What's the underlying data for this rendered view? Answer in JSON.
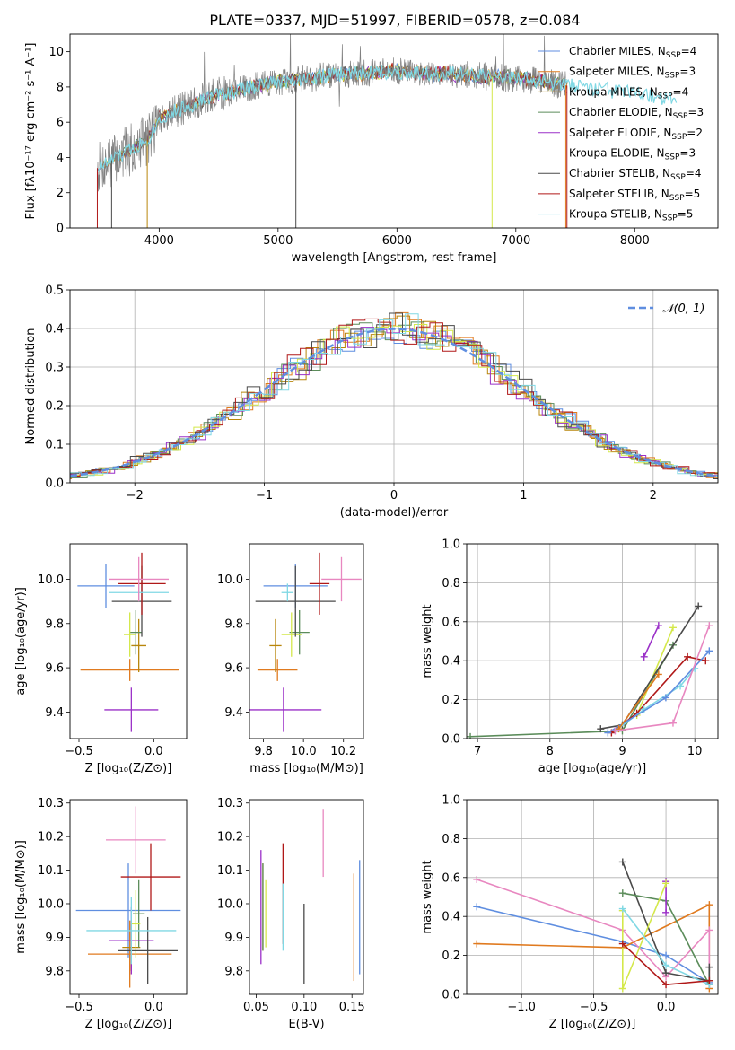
{
  "figure_title": "PLATE=0337, MJD=51997, FIBERID=0578, z=0.084",
  "colors": {
    "Chabrier MILES": "#5f8ee0",
    "Salpeter MILES": "#e07a1f",
    "Kroupa MILES": "#b8860b",
    "Chabrier ELODIE": "#5b8c5a",
    "Salpeter ELODIE": "#9b30c8",
    "Kroupa ELODIE": "#d4e84a",
    "Chabrier STELIB": "#4a4a4a",
    "Salpeter STELIB": "#b01818",
    "Kroupa STELIB": "#80d8e4",
    "pink": "#e887c0",
    "normal": "#5f8ee0",
    "data": "#808080"
  },
  "chart_data": [
    {
      "id": "spectrum",
      "type": "line",
      "xlabel": "wavelength [Angstrom, rest frame]",
      "ylabel": "Flux [fλ10⁻¹⁷ erg cm⁻² s⁻¹ A⁻¹]",
      "xlim": [
        3250,
        8700
      ],
      "ylim": [
        0,
        11
      ],
      "xticks": [
        4000,
        5000,
        6000,
        7000,
        8000
      ],
      "yticks": [
        0,
        2,
        4,
        6,
        8,
        10
      ],
      "legend_position": "upper-right",
      "legend": [
        {
          "name": "Chabrier MILES",
          "nssp": "4"
        },
        {
          "name": "Salpeter MILES",
          "nssp": "3"
        },
        {
          "name": "Kroupa MILES",
          "nssp": "4"
        },
        {
          "name": "Chabrier ELODIE",
          "nssp": "3"
        },
        {
          "name": "Salpeter ELODIE",
          "nssp": "2"
        },
        {
          "name": "Kroupa ELODIE",
          "nssp": "3"
        },
        {
          "name": "Chabrier STELIB",
          "nssp": "4"
        },
        {
          "name": "Salpeter STELIB",
          "nssp": "5"
        },
        {
          "name": "Kroupa STELIB",
          "nssp": "5"
        }
      ],
      "continuum": [
        [
          3480,
          3.4
        ],
        [
          3700,
          4.2
        ],
        [
          3900,
          5.0
        ],
        [
          4000,
          6.2
        ],
        [
          4200,
          6.8
        ],
        [
          4500,
          7.6
        ],
        [
          5000,
          8.3
        ],
        [
          5500,
          8.7
        ],
        [
          6000,
          8.9
        ],
        [
          6500,
          8.7
        ],
        [
          7000,
          8.5
        ],
        [
          7400,
          8.1
        ],
        [
          7800,
          7.8
        ],
        [
          8300,
          7.3
        ]
      ]
    },
    {
      "id": "residuals",
      "type": "histogram",
      "xlabel": "(data-model)/error",
      "ylabel": "Normed distribution",
      "xlim": [
        -2.5,
        2.5
      ],
      "ylim": [
        0,
        0.5
      ],
      "xticks": [
        -2,
        -1,
        0,
        1,
        2
      ],
      "yticks": [
        0.0,
        0.1,
        0.2,
        0.3,
        0.4,
        0.5
      ],
      "grid": true,
      "legend_position": "upper-right",
      "legend_label": "𝒩(0, 1)"
    },
    {
      "id": "age-vs-Z",
      "type": "errorbar",
      "xlabel": "Z [log₁₀(Z/Z⊙)]",
      "ylabel": "age  [log₁₀(age/yr)]",
      "xlim": [
        -0.56,
        0.22
      ],
      "ylim": [
        9.28,
        10.16
      ],
      "xticks": [
        -0.5,
        0.0
      ],
      "yticks": [
        9.4,
        9.6,
        9.8,
        10.0
      ],
      "points": [
        {
          "s": "Chabrier MILES",
          "x": -0.32,
          "xe": 0.19,
          "y": 9.97,
          "ye": 0.1
        },
        {
          "s": "Salpeter MILES",
          "x": -0.16,
          "xe": 0.33,
          "y": 9.59,
          "ye": 0.05
        },
        {
          "s": "Kroupa MILES",
          "x": -0.1,
          "xe": 0.05,
          "y": 9.7,
          "ye": 0.12
        },
        {
          "s": "Chabrier ELODIE",
          "x": -0.12,
          "xe": 0.04,
          "y": 9.76,
          "ye": 0.1
        },
        {
          "s": "Salpeter ELODIE",
          "x": -0.15,
          "xe": 0.18,
          "y": 9.41,
          "ye": 0.1
        },
        {
          "s": "Kroupa ELODIE",
          "x": -0.16,
          "xe": 0.04,
          "y": 9.75,
          "ye": 0.1
        },
        {
          "s": "Chabrier STELIB",
          "x": -0.08,
          "xe": 0.2,
          "y": 9.9,
          "ye": 0.16
        },
        {
          "s": "Salpeter STELIB",
          "x": -0.08,
          "xe": 0.16,
          "y": 9.98,
          "ye": 0.14
        },
        {
          "s": "Kroupa STELIB",
          "x": -0.1,
          "xe": 0.2,
          "y": 9.94,
          "ye": 0.04
        },
        {
          "s": "pink",
          "x": -0.1,
          "xe": 0.2,
          "y": 10.0,
          "ye": 0.1
        }
      ]
    },
    {
      "id": "age-vs-mass",
      "type": "errorbar",
      "xlabel": "mass [log₁₀(M/M⊙)]",
      "ylabel": "",
      "xlim": [
        9.73,
        10.3
      ],
      "ylim": [
        9.28,
        10.16
      ],
      "xticks": [
        9.8,
        10.0,
        10.2
      ],
      "yticks": [
        9.4,
        9.6,
        9.8,
        10.0
      ],
      "points": [
        {
          "s": "Chabrier MILES",
          "x": 9.96,
          "xe": 0.16,
          "y": 9.97,
          "ye": 0.1
        },
        {
          "s": "Salpeter MILES",
          "x": 9.87,
          "xe": 0.1,
          "y": 9.59,
          "ye": 0.05
        },
        {
          "s": "Kroupa MILES",
          "x": 9.86,
          "xe": 0.03,
          "y": 9.7,
          "ye": 0.12
        },
        {
          "s": "Chabrier ELODIE",
          "x": 9.98,
          "xe": 0.05,
          "y": 9.76,
          "ye": 0.1
        },
        {
          "s": "Salpeter ELODIE",
          "x": 9.9,
          "xe": 0.19,
          "y": 9.41,
          "ye": 0.1
        },
        {
          "s": "Kroupa ELODIE",
          "x": 9.94,
          "xe": 0.05,
          "y": 9.75,
          "ye": 0.1
        },
        {
          "s": "Chabrier STELIB",
          "x": 9.96,
          "xe": 0.2,
          "y": 9.9,
          "ye": 0.16
        },
        {
          "s": "Salpeter STELIB",
          "x": 10.08,
          "xe": 0.05,
          "y": 9.98,
          "ye": 0.14
        },
        {
          "s": "Kroupa STELIB",
          "x": 9.92,
          "xe": 0.03,
          "y": 9.94,
          "ye": 0.04
        },
        {
          "s": "pink",
          "x": 10.19,
          "xe": 0.1,
          "y": 10.0,
          "ye": 0.1
        }
      ]
    },
    {
      "id": "mass-weight-vs-age",
      "type": "line",
      "xlabel": "age  [log₁₀(age/yr)]",
      "ylabel": "mass weight",
      "xlim": [
        6.85,
        10.32
      ],
      "ylim": [
        0,
        1.0
      ],
      "xticks": [
        7,
        8,
        9,
        10
      ],
      "yticks": [
        0.0,
        0.2,
        0.4,
        0.6,
        0.8,
        1.0
      ],
      "grid": true,
      "series": [
        {
          "s": "Chabrier ELODIE",
          "x": [
            6.9,
            9.0,
            9.7
          ],
          "y": [
            0.01,
            0.04,
            0.48
          ]
        },
        {
          "s": "Salpeter ELODIE",
          "x": [
            9.3,
            9.5
          ],
          "y": [
            0.42,
            0.58
          ]
        },
        {
          "s": "Kroupa ELODIE",
          "x": [
            9.2,
            9.7
          ],
          "y": [
            0.12,
            0.57
          ]
        },
        {
          "s": "Chabrier STELIB",
          "x": [
            8.7,
            9.0,
            10.05
          ],
          "y": [
            0.05,
            0.07,
            0.68
          ]
        },
        {
          "s": "Salpeter STELIB",
          "x": [
            8.85,
            9.2,
            9.9,
            10.15
          ],
          "y": [
            0.03,
            0.13,
            0.42,
            0.4
          ]
        },
        {
          "s": "Kroupa STELIB",
          "x": [
            8.9,
            9.3,
            9.8,
            10.0
          ],
          "y": [
            0.04,
            0.15,
            0.27,
            0.36
          ]
        },
        {
          "s": "Chabrier MILES",
          "x": [
            8.8,
            9.6,
            10.2
          ],
          "y": [
            0.03,
            0.21,
            0.45
          ]
        },
        {
          "s": "Salpeter MILES",
          "x": [
            8.95,
            9.5
          ],
          "y": [
            0.05,
            0.33
          ]
        },
        {
          "s": "pink",
          "x": [
            8.9,
            9.7,
            10.2
          ],
          "y": [
            0.04,
            0.08,
            0.58
          ]
        }
      ]
    },
    {
      "id": "mass-vs-Z",
      "type": "errorbar",
      "xlabel": "Z [log₁₀(Z/Z⊙)]",
      "ylabel": "mass [log₁₀(M/M⊙)]",
      "xlim": [
        -0.56,
        0.22
      ],
      "ylim": [
        9.73,
        10.31
      ],
      "xticks": [
        -0.5,
        0.0
      ],
      "yticks": [
        9.8,
        9.9,
        10.0,
        10.1,
        10.2,
        10.3
      ],
      "points": [
        {
          "s": "Chabrier MILES",
          "x": -0.17,
          "xe": 0.35,
          "y": 9.98,
          "ye": 0.14
        },
        {
          "s": "Salpeter MILES",
          "x": -0.16,
          "xe": 0.28,
          "y": 9.85,
          "ye": 0.1
        },
        {
          "s": "Kroupa MILES",
          "x": -0.15,
          "xe": 0.06,
          "y": 9.87,
          "ye": 0.07
        },
        {
          "s": "Chabrier ELODIE",
          "x": -0.1,
          "xe": 0.04,
          "y": 9.97,
          "ye": 0.1
        },
        {
          "s": "Salpeter ELODIE",
          "x": -0.15,
          "xe": 0.15,
          "y": 9.89,
          "ye": 0.1
        },
        {
          "s": "Kroupa ELODIE",
          "x": -0.12,
          "xe": 0.03,
          "y": 9.94,
          "ye": 0.1
        },
        {
          "s": "Chabrier STELIB",
          "x": -0.04,
          "xe": 0.2,
          "y": 9.86,
          "ye": 0.1
        },
        {
          "s": "Salpeter STELIB",
          "x": -0.02,
          "xe": 0.2,
          "y": 10.08,
          "ye": 0.1
        },
        {
          "s": "Kroupa STELIB",
          "x": -0.15,
          "xe": 0.3,
          "y": 9.92,
          "ye": 0.1
        },
        {
          "s": "pink",
          "x": -0.12,
          "xe": 0.2,
          "y": 10.19,
          "ye": 0.1
        }
      ]
    },
    {
      "id": "mass-vs-ebv",
      "type": "errorbar",
      "xlabel": "E(B-V)",
      "ylabel": "",
      "xlim": [
        0.043,
        0.162
      ],
      "ylim": [
        9.73,
        10.31
      ],
      "xticks": [
        0.05,
        0.1,
        0.15
      ],
      "yticks": [
        9.8,
        9.9,
        10.0,
        10.1,
        10.2,
        10.3
      ],
      "points": [
        {
          "s": "Chabrier MILES",
          "x": 0.158,
          "y": 9.96,
          "ye": 0.17
        },
        {
          "s": "Salpeter MILES",
          "x": 0.152,
          "y": 9.93,
          "ye": 0.16
        },
        {
          "s": "Kroupa MILES",
          "x": 0.057,
          "y": 9.99,
          "ye": 0.13
        },
        {
          "s": "Chabrier ELODIE",
          "x": 0.057,
          "y": 9.99,
          "ye": 0.13
        },
        {
          "s": "Salpeter ELODIE",
          "x": 0.055,
          "y": 9.99,
          "ye": 0.17
        },
        {
          "s": "Kroupa ELODIE",
          "x": 0.06,
          "y": 9.97,
          "ye": 0.1
        },
        {
          "s": "Chabrier STELIB",
          "x": 0.1,
          "y": 9.88,
          "ye": 0.12
        },
        {
          "s": "Salpeter STELIB",
          "x": 0.078,
          "y": 10.03,
          "ye": 0.15
        },
        {
          "s": "Kroupa STELIB",
          "x": 0.078,
          "y": 9.96,
          "ye": 0.1
        },
        {
          "s": "pink",
          "x": 0.12,
          "y": 10.18,
          "ye": 0.1
        }
      ]
    },
    {
      "id": "mass-weight-vs-Z",
      "type": "line",
      "xlabel": "Z [log₁₀(Z/Z⊙)]",
      "ylabel": "mass weight",
      "xlim": [
        -1.38,
        0.36
      ],
      "ylim": [
        0,
        1.0
      ],
      "xticks": [
        -1.0,
        -0.5,
        0.0
      ],
      "yticks": [
        0.0,
        0.2,
        0.4,
        0.6,
        0.8,
        1.0
      ],
      "grid": true,
      "series": [
        {
          "s": "Chabrier MILES",
          "x": [
            -1.31,
            -0.3,
            0.0,
            0.3
          ],
          "y": [
            0.45,
            0.27,
            0.2,
            0.06
          ]
        },
        {
          "s": "Salpeter MILES",
          "x": [
            -1.31,
            -0.3,
            0.3,
            0.3
          ],
          "y": [
            0.26,
            0.24,
            0.46,
            0.03
          ]
        },
        {
          "s": "pink",
          "x": [
            -1.31,
            -0.3,
            0.0,
            0.3,
            0.3
          ],
          "y": [
            0.59,
            0.33,
            0.09,
            0.33,
            0.05
          ]
        },
        {
          "s": "Chabrier STELIB",
          "x": [
            -0.3,
            0.0,
            0.3,
            0.3
          ],
          "y": [
            0.68,
            0.11,
            0.07,
            0.14
          ]
        },
        {
          "s": "Chabrier ELODIE",
          "x": [
            -0.3,
            0.0,
            0.3
          ],
          "y": [
            0.52,
            0.48,
            0.05
          ]
        },
        {
          "s": "Salpeter ELODIE",
          "x": [
            0.0,
            0.0
          ],
          "y": [
            0.58,
            0.42
          ]
        },
        {
          "s": "Kroupa ELODIE",
          "x": [
            -0.3,
            -0.3,
            0.0
          ],
          "y": [
            0.43,
            0.03,
            0.57
          ]
        },
        {
          "s": "Kroupa STELIB",
          "x": [
            -0.3,
            0.0,
            0.3
          ],
          "y": [
            0.44,
            0.15,
            0.05
          ]
        },
        {
          "s": "Salpeter STELIB",
          "x": [
            -0.3,
            0.0,
            0.3
          ],
          "y": [
            0.26,
            0.05,
            0.07
          ]
        }
      ]
    }
  ]
}
